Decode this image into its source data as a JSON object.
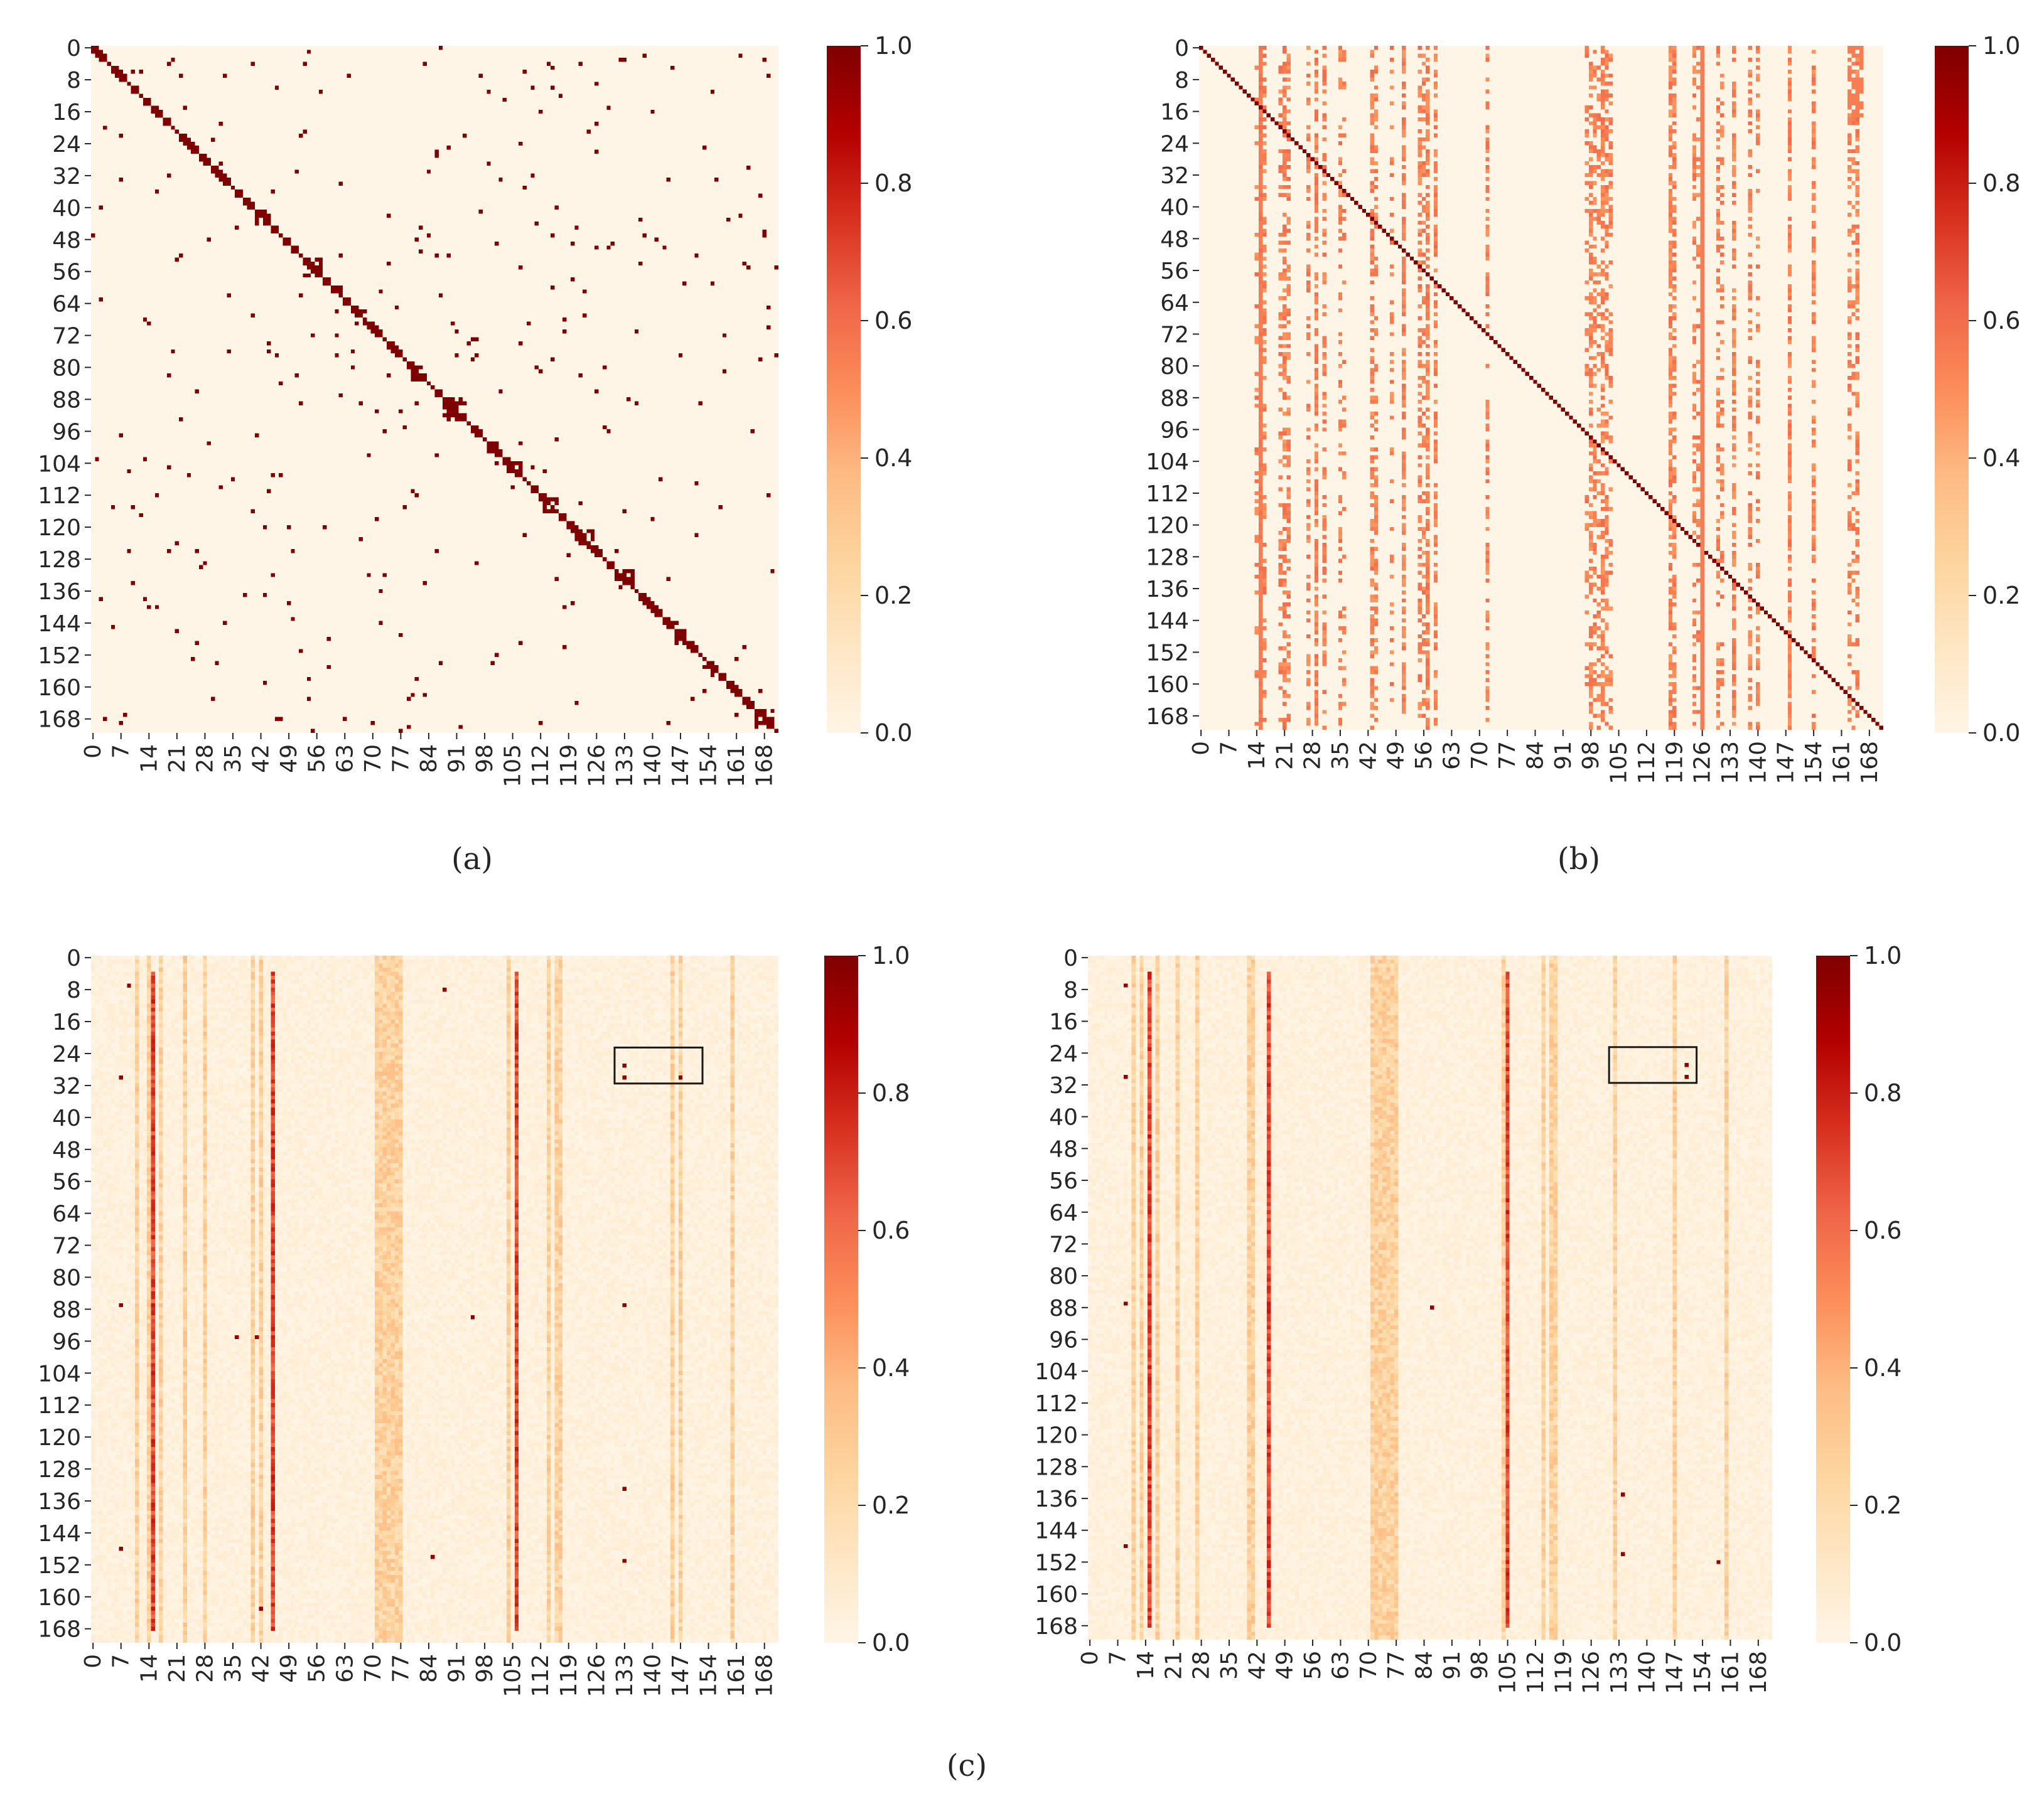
{
  "figure": {
    "captions": [
      "(a)",
      "(b)",
      "(c)"
    ]
  },
  "palette": {
    "stops": [
      "#fff5e6",
      "#fee6c4",
      "#fdd49e",
      "#fdbb84",
      "#fc8d59",
      "#ef6548",
      "#d7301f",
      "#b30000",
      "#7f0000"
    ],
    "axis_color": "#262626",
    "box_color": "#1a1a1a"
  },
  "chart_data": [
    {
      "id": "a",
      "type": "heatmap",
      "title": "",
      "n": 172,
      "ylabel_ticks": [
        "0",
        "8",
        "16",
        "24",
        "32",
        "40",
        "48",
        "56",
        "64",
        "72",
        "80",
        "88",
        "96",
        "104",
        "112",
        "120",
        "128",
        "136",
        "144",
        "152",
        "160",
        "168"
      ],
      "xlabel_ticks": [
        "0",
        "7",
        "14",
        "21",
        "28",
        "35",
        "42",
        "49",
        "56",
        "63",
        "70",
        "77",
        "84",
        "91",
        "98",
        "105",
        "112",
        "119",
        "126",
        "133",
        "140",
        "147",
        "154",
        "161",
        "168"
      ],
      "colorbar": {
        "range": [
          0.0,
          1.0
        ],
        "ticks": [
          "0.0",
          "0.2",
          "0.4",
          "0.6",
          "0.8",
          "1.0"
        ]
      },
      "pattern": "sparse adjacency with strong diagonal; scattered entries of value 1.0",
      "diagonal_value": 1.0,
      "highlight_box": null
    },
    {
      "id": "b",
      "type": "heatmap",
      "title": "",
      "n": 172,
      "ylabel_ticks": [
        "0",
        "8",
        "16",
        "24",
        "32",
        "40",
        "48",
        "56",
        "64",
        "72",
        "80",
        "88",
        "96",
        "104",
        "112",
        "120",
        "128",
        "136",
        "144",
        "152",
        "160",
        "168"
      ],
      "xlabel_ticks": [
        "0",
        "7",
        "14",
        "21",
        "28",
        "35",
        "42",
        "49",
        "56",
        "63",
        "70",
        "77",
        "84",
        "91",
        "98",
        "105",
        "112",
        "119",
        "126",
        "133",
        "140",
        "147",
        "154",
        "161",
        "168"
      ],
      "colorbar": {
        "range": [
          0.0,
          1.0
        ],
        "ticks": [
          "0.0",
          "0.2",
          "0.4",
          "0.6",
          "0.8",
          "1.0"
        ]
      },
      "pattern": "thin diagonal of 1.0 with dotted vertical column bands of value about 0.55",
      "diagonal_value": 1.0,
      "band_columns": [
        14,
        15,
        16,
        20,
        21,
        22,
        27,
        29,
        31,
        35,
        36,
        43,
        44,
        48,
        51,
        55,
        56,
        57,
        59,
        72,
        97,
        98,
        99,
        100,
        101,
        102,
        103,
        118,
        119,
        124,
        125,
        126,
        130,
        131,
        134,
        138,
        140,
        148,
        154,
        163,
        164,
        165
      ],
      "band_value": 0.55,
      "highlight_box": null
    },
    {
      "id": "c-left",
      "type": "heatmap",
      "title": "",
      "n": 172,
      "ylabel_ticks": [
        "0",
        "8",
        "16",
        "24",
        "32",
        "40",
        "48",
        "56",
        "64",
        "72",
        "80",
        "88",
        "96",
        "104",
        "112",
        "120",
        "128",
        "136",
        "144",
        "152",
        "160",
        "168"
      ],
      "xlabel_ticks": [
        "0",
        "7",
        "14",
        "21",
        "28",
        "35",
        "42",
        "49",
        "56",
        "63",
        "70",
        "77",
        "84",
        "91",
        "98",
        "105",
        "112",
        "119",
        "126",
        "133",
        "140",
        "147",
        "154",
        "161",
        "168"
      ],
      "colorbar": {
        "range": [
          0.0,
          1.0
        ],
        "ticks": [
          "0.0",
          "0.2",
          "0.4",
          "0.6",
          "0.8",
          "1.0"
        ]
      },
      "pattern": "low-valued background with strong vertical stripes",
      "strong_columns": [
        15,
        45,
        106
      ],
      "strong_value": 0.78,
      "mid_columns": [
        11,
        14,
        17,
        23,
        28,
        40,
        42,
        71,
        72,
        73,
        74,
        75,
        76,
        77,
        104,
        114,
        116,
        117,
        145,
        147,
        160
      ],
      "mid_value": 0.3,
      "dot_points": [
        [
          7,
          9
        ],
        [
          30,
          7
        ],
        [
          87,
          7
        ],
        [
          148,
          7
        ],
        [
          8,
          88
        ],
        [
          95,
          36
        ],
        [
          95,
          41
        ],
        [
          150,
          85
        ],
        [
          27,
          133
        ],
        [
          30,
          133
        ],
        [
          30,
          147
        ],
        [
          87,
          133
        ],
        [
          133,
          133
        ],
        [
          151,
          133
        ],
        [
          163,
          42
        ],
        [
          90,
          95
        ]
      ],
      "highlight_box": {
        "col_start": 131,
        "col_end": 153,
        "row_start": 23,
        "row_end": 32
      }
    },
    {
      "id": "c-right",
      "type": "heatmap",
      "title": "",
      "n": 172,
      "ylabel_ticks": [
        "0",
        "8",
        "16",
        "24",
        "32",
        "40",
        "48",
        "56",
        "64",
        "72",
        "80",
        "88",
        "96",
        "104",
        "112",
        "120",
        "128",
        "136",
        "144",
        "152",
        "160",
        "168"
      ],
      "xlabel_ticks": [
        "0",
        "7",
        "14",
        "21",
        "28",
        "35",
        "42",
        "49",
        "56",
        "63",
        "70",
        "77",
        "84",
        "91",
        "98",
        "105",
        "112",
        "119",
        "126",
        "133",
        "140",
        "147",
        "154",
        "161",
        "168"
      ],
      "colorbar": {
        "range": [
          0.0,
          1.0
        ],
        "ticks": [
          "0.0",
          "0.2",
          "0.4",
          "0.6",
          "0.8",
          "1.0"
        ]
      },
      "pattern": "low-valued background with strong vertical stripes",
      "strong_columns": [
        15,
        45,
        105
      ],
      "strong_value": 0.78,
      "mid_columns": [
        11,
        13,
        17,
        22,
        27,
        40,
        41,
        71,
        72,
        73,
        74,
        75,
        76,
        77,
        104,
        114,
        116,
        117,
        132,
        147,
        160
      ],
      "mid_value": 0.3,
      "dot_points": [
        [
          7,
          9
        ],
        [
          30,
          9
        ],
        [
          87,
          9
        ],
        [
          148,
          9
        ],
        [
          88,
          86
        ],
        [
          135,
          134
        ],
        [
          150,
          134
        ],
        [
          152,
          158
        ],
        [
          27,
          150
        ],
        [
          30,
          150
        ]
      ],
      "highlight_box": {
        "col_start": 131,
        "col_end": 153,
        "row_start": 23,
        "row_end": 32
      }
    }
  ]
}
